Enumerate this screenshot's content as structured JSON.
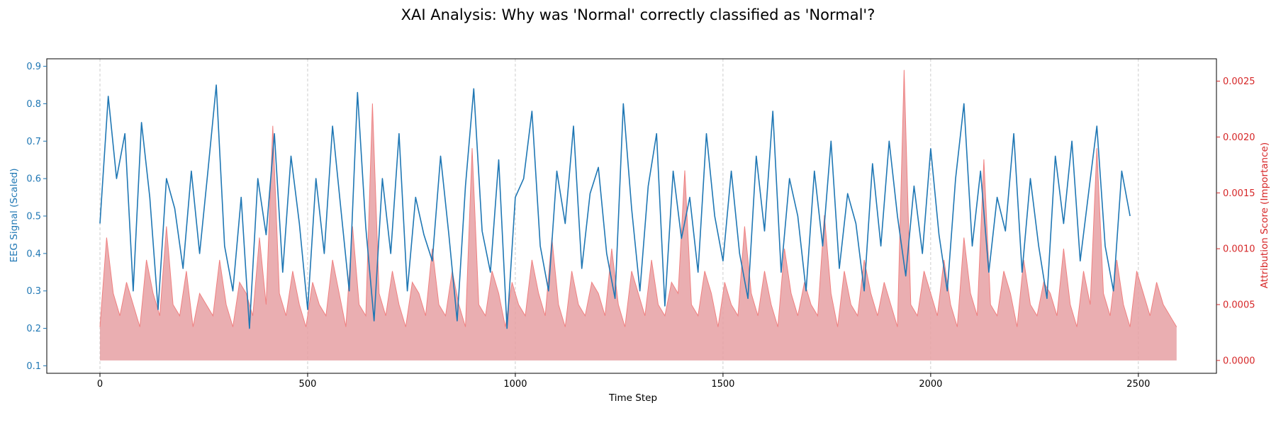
{
  "chart_data": {
    "type": "line",
    "title": "XAI Analysis: Why was 'Normal' correctly classified as 'Normal'?",
    "xlabel": "Time Step",
    "ylabel_left": "EEG Signal (Scaled)",
    "ylabel_right": "Attribution Score (Importance)",
    "xlim": [
      -128,
      2688
    ],
    "ylim_left": [
      0.08,
      0.92
    ],
    "ylim_right": [
      -0.000115,
      0.0027
    ],
    "x_ticks": [
      0,
      500,
      1000,
      1500,
      2000,
      2500
    ],
    "y_left_ticks": [
      0.1,
      0.2,
      0.3,
      0.4,
      0.5,
      0.6,
      0.7,
      0.8,
      0.9
    ],
    "y_right_ticks": [
      0.0,
      0.0005,
      0.001,
      0.0015,
      0.002,
      0.0025
    ],
    "y_right_tick_labels": [
      "0.0000",
      "0.0005",
      "0.0010",
      "0.0015",
      "0.0020",
      "0.0025"
    ],
    "x_grid": true,
    "y_grid": false,
    "colors": {
      "signal": "#1f77b4",
      "attribution_fill": "#e6a0a3",
      "attribution_line": "#f08080",
      "left_axis": "#1f77b4",
      "right_axis": "#d62728"
    },
    "series": [
      {
        "axis": "left",
        "style": "line",
        "x_step": 20,
        "x_start": 0,
        "values": [
          0.48,
          0.82,
          0.6,
          0.72,
          0.3,
          0.75,
          0.55,
          0.25,
          0.6,
          0.52,
          0.36,
          0.62,
          0.4,
          0.62,
          0.85,
          0.42,
          0.3,
          0.55,
          0.2,
          0.6,
          0.45,
          0.72,
          0.35,
          0.66,
          0.48,
          0.25,
          0.6,
          0.4,
          0.74,
          0.52,
          0.3,
          0.83,
          0.47,
          0.22,
          0.6,
          0.4,
          0.72,
          0.3,
          0.55,
          0.45,
          0.38,
          0.66,
          0.45,
          0.22,
          0.58,
          0.84,
          0.46,
          0.35,
          0.65,
          0.2,
          0.55,
          0.6,
          0.78,
          0.42,
          0.3,
          0.62,
          0.48,
          0.74,
          0.36,
          0.56,
          0.63,
          0.4,
          0.28,
          0.8,
          0.52,
          0.3,
          0.58,
          0.72,
          0.26,
          0.62,
          0.44,
          0.55,
          0.35,
          0.72,
          0.5,
          0.38,
          0.62,
          0.4,
          0.28,
          0.66,
          0.46,
          0.78,
          0.35,
          0.6,
          0.5,
          0.3,
          0.62,
          0.42,
          0.7,
          0.36,
          0.56,
          0.48,
          0.3,
          0.64,
          0.42,
          0.7,
          0.5,
          0.34,
          0.58,
          0.4,
          0.68,
          0.45,
          0.3,
          0.6,
          0.8,
          0.42,
          0.62,
          0.35,
          0.55,
          0.46,
          0.72,
          0.35,
          0.6,
          0.42,
          0.28,
          0.66,
          0.48,
          0.7,
          0.38,
          0.56,
          0.74,
          0.42,
          0.3,
          0.62,
          0.5
        ]
      },
      {
        "axis": "right",
        "style": "filled_area",
        "x_step": 16,
        "x_start": 0,
        "values": [
          0.0003,
          0.0011,
          0.0006,
          0.0004,
          0.0007,
          0.0005,
          0.0003,
          0.0009,
          0.0006,
          0.0004,
          0.0012,
          0.0005,
          0.0004,
          0.0008,
          0.0003,
          0.0006,
          0.0005,
          0.0004,
          0.0009,
          0.0005,
          0.0003,
          0.0007,
          0.0006,
          0.0004,
          0.0011,
          0.0005,
          0.0021,
          0.0006,
          0.0004,
          0.0008,
          0.0005,
          0.0003,
          0.0007,
          0.0005,
          0.0004,
          0.0009,
          0.0006,
          0.0003,
          0.0012,
          0.0005,
          0.0004,
          0.0023,
          0.0006,
          0.0004,
          0.0008,
          0.0005,
          0.0003,
          0.0007,
          0.0006,
          0.0004,
          0.001,
          0.0005,
          0.0004,
          0.0008,
          0.0005,
          0.0003,
          0.0019,
          0.0005,
          0.0004,
          0.0008,
          0.0006,
          0.0003,
          0.0007,
          0.0005,
          0.0004,
          0.0009,
          0.0006,
          0.0004,
          0.0011,
          0.0005,
          0.0003,
          0.0008,
          0.0005,
          0.0004,
          0.0007,
          0.0006,
          0.0004,
          0.001,
          0.0005,
          0.0003,
          0.0008,
          0.0006,
          0.0004,
          0.0009,
          0.0005,
          0.0004,
          0.0007,
          0.0006,
          0.0017,
          0.0005,
          0.0004,
          0.0008,
          0.0006,
          0.0003,
          0.0007,
          0.0005,
          0.0004,
          0.0012,
          0.0006,
          0.0004,
          0.0008,
          0.0005,
          0.0003,
          0.001,
          0.0006,
          0.0004,
          0.0007,
          0.0005,
          0.0004,
          0.0013,
          0.0006,
          0.0003,
          0.0008,
          0.0005,
          0.0004,
          0.0009,
          0.0006,
          0.0004,
          0.0007,
          0.0005,
          0.0003,
          0.0026,
          0.0005,
          0.0004,
          0.0008,
          0.0006,
          0.0004,
          0.0009,
          0.0005,
          0.0003,
          0.0011,
          0.0006,
          0.0004,
          0.0018,
          0.0005,
          0.0004,
          0.0008,
          0.0006,
          0.0003,
          0.0009,
          0.0005,
          0.0004,
          0.0007,
          0.0006,
          0.0004,
          0.001,
          0.0005,
          0.0003,
          0.0008,
          0.0005,
          0.0019,
          0.0006,
          0.0004,
          0.0009,
          0.0005,
          0.0003,
          0.0008,
          0.0006,
          0.0004,
          0.0007,
          0.0005,
          0.0004,
          0.0003
        ]
      }
    ]
  }
}
